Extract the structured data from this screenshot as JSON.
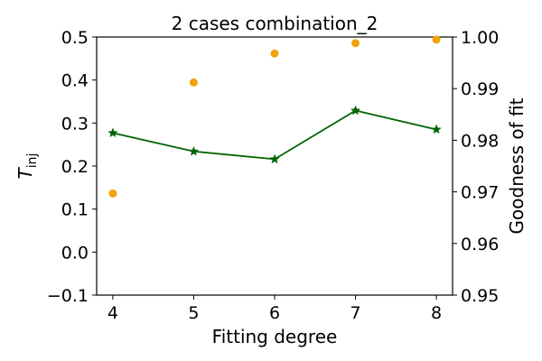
{
  "chart_data": {
    "type": "line",
    "title": "2 cases combination_2",
    "xlabel": "Fitting degree",
    "ylabel_left": {
      "main": "T",
      "sub": "inj"
    },
    "ylabel_right": "Goodness of fit",
    "x": [
      4,
      5,
      6,
      7,
      8
    ],
    "xlim": [
      3.8,
      8.2
    ],
    "xticks": [
      "4",
      "5",
      "6",
      "7",
      "8"
    ],
    "ylim_left": [
      -0.1,
      0.5
    ],
    "yticks_left": [
      "−0.1",
      "0.0",
      "0.1",
      "0.2",
      "0.3",
      "0.4",
      "0.5"
    ],
    "ylim_right": [
      0.95,
      1.0
    ],
    "yticks_right": [
      "0.95",
      "0.96",
      "0.97",
      "0.98",
      "0.99",
      "1.00"
    ],
    "grid": false,
    "series": [
      {
        "axis": "left",
        "style": "line-star",
        "color": "#006400",
        "values": [
          0.277,
          0.234,
          0.216,
          0.329,
          0.285
        ]
      },
      {
        "axis": "right",
        "style": "scatter-circle",
        "color": "#f2a20d",
        "values": [
          0.9697,
          0.9912,
          0.9968,
          0.9988,
          0.9995
        ]
      }
    ]
  }
}
